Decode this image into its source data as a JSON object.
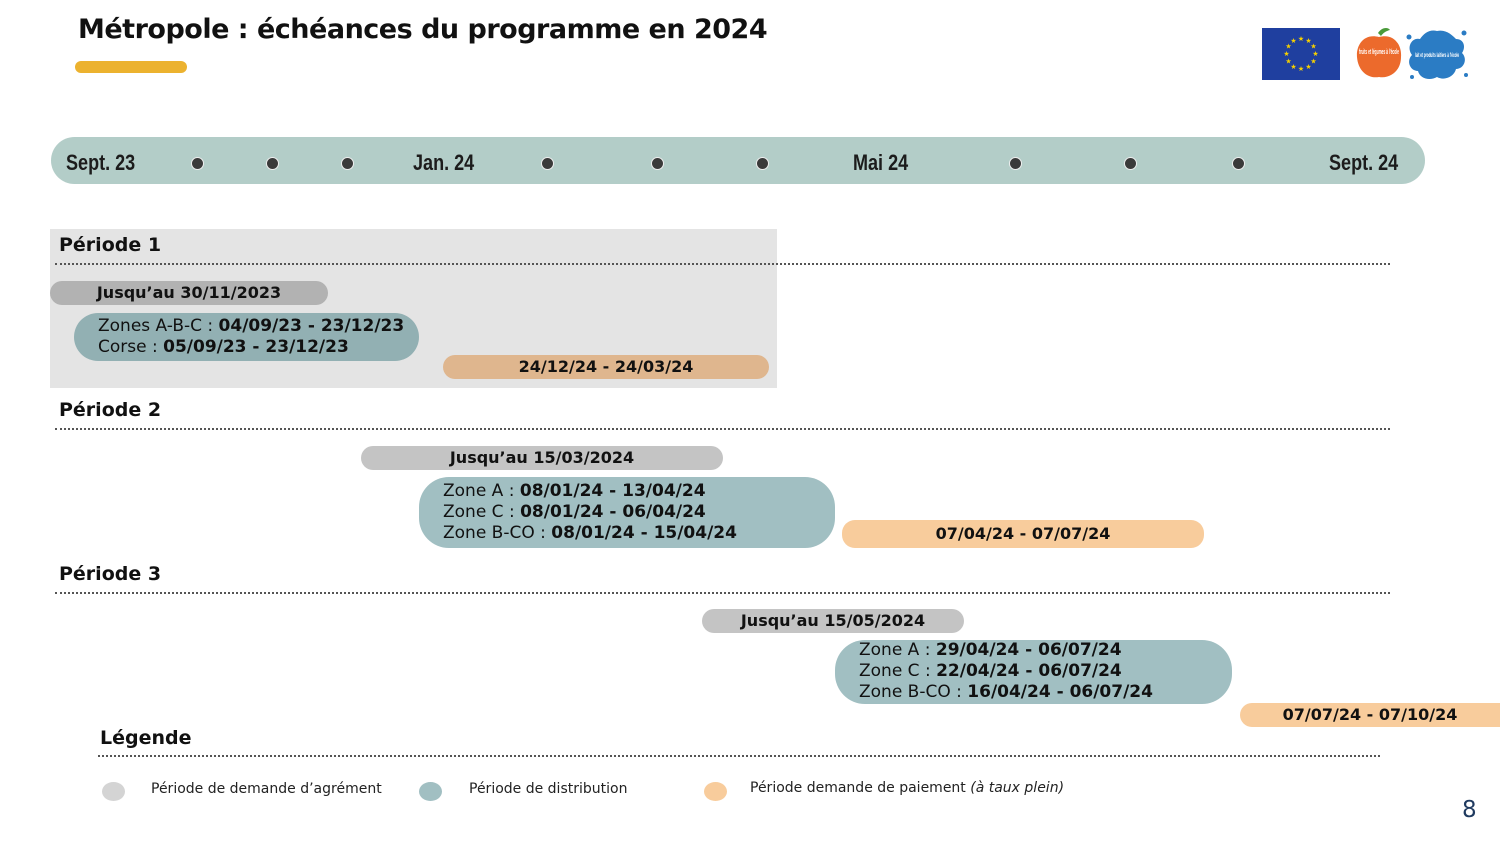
{
  "title": "Métropole : échéances du programme en 2024",
  "colors": {
    "accent_underline": "#ecb22f",
    "timeline_bar": "#b3cdc8",
    "agrement": "#c4c4c4",
    "distribution": "#a1bfc2",
    "paiement": "#f8cc9c",
    "eu_blue": "#1f3f9f",
    "eu_star": "#f5d000"
  },
  "logos": {
    "eu_flag": "eu-flag-icon",
    "fruits_legumes": {
      "icon": "fruits-legumes-logo",
      "text": "fruits et légumes à l'école"
    },
    "lait": {
      "icon": "lait-produits-laitiers-logo",
      "text": "lait et produits laitiers à l'école"
    }
  },
  "timeline": {
    "months": [
      "Sept. 23",
      "Jan. 24",
      "Mai 24",
      "Sept. 24"
    ]
  },
  "periods": [
    {
      "label": "Période 1",
      "agrement": "Jusqu’au 30/11/2023",
      "distribution": [
        {
          "zone": "Zones A-B-C : ",
          "dates": "04/09/23 - 23/12/23"
        },
        {
          "zone": "Corse : ",
          "dates": "05/09/23 - 23/12/23"
        }
      ],
      "paiement": "24/12/24 - 24/03/24"
    },
    {
      "label": "Période 2",
      "agrement": "Jusqu’au 15/03/2024",
      "distribution": [
        {
          "zone": "Zone A : ",
          "dates": "08/01/24 - 13/04/24"
        },
        {
          "zone": "Zone C : ",
          "dates": "08/01/24 - 06/04/24"
        },
        {
          "zone": "Zone B-CO : ",
          "dates": "08/01/24 - 15/04/24"
        }
      ],
      "paiement": "07/04/24 - 07/07/24"
    },
    {
      "label": "Période 3",
      "agrement": "Jusqu’au 15/05/2024",
      "distribution": [
        {
          "zone": "Zone A : ",
          "dates": "29/04/24 - 06/07/24"
        },
        {
          "zone": "Zone C : ",
          "dates": "22/04/24 - 06/07/24"
        },
        {
          "zone": "Zone B-CO : ",
          "dates": "16/04/24 - 06/07/24"
        }
      ],
      "paiement": "07/07/24 - 07/10/24"
    }
  ],
  "legend": {
    "title": "Légende",
    "items": [
      {
        "label": "Période de demande d’agrément",
        "note": ""
      },
      {
        "label": "Période de distribution",
        "note": ""
      },
      {
        "label": "Période demande de paiement ",
        "note": "(à taux plein)"
      }
    ]
  },
  "page_number": "8"
}
